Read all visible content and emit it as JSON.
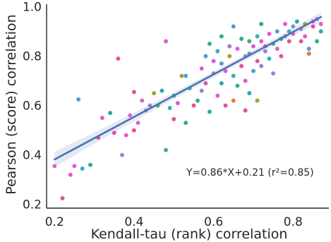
{
  "chart_data": {
    "type": "scatter",
    "title": "",
    "xlabel": "Kendall-tau (rank) correlation",
    "ylabel": "Pearson (score) correlation",
    "xlim": [
      0.18,
      0.89
    ],
    "ylim": [
      0.185,
      1.01
    ],
    "xticks": [
      "0.2",
      "0.4",
      "0.6",
      "0.8"
    ],
    "yticks": [
      "0.2",
      "0.4",
      "0.6",
      "0.8",
      "1.0"
    ],
    "grid": false,
    "legend": "none",
    "regression": {
      "slope": 0.86,
      "intercept": 0.21,
      "x_range": [
        0.2,
        0.87
      ],
      "color": "#4c72b0",
      "band_color": "#dbe3f0"
    },
    "annotation": "Y=0.86*X+0.21 (r²=0.85)",
    "palette": [
      "#e35ad3",
      "#36aec0",
      "#4c9fd6",
      "#9b7fe0",
      "#3bb275",
      "#ae9d31",
      "#e0529c",
      "#7f8ee0",
      "#e07b39",
      "#2fa89f"
    ],
    "points": [
      [
        0.2,
        0.355,
        0
      ],
      [
        0.22,
        0.225,
        6
      ],
      [
        0.24,
        0.32,
        0
      ],
      [
        0.25,
        0.355,
        0
      ],
      [
        0.26,
        0.625,
        2
      ],
      [
        0.27,
        0.345,
        1
      ],
      [
        0.29,
        0.36,
        9
      ],
      [
        0.31,
        0.47,
        6
      ],
      [
        0.32,
        0.55,
        0
      ],
      [
        0.34,
        0.57,
        9
      ],
      [
        0.35,
        0.49,
        6
      ],
      [
        0.36,
        0.79,
        6
      ],
      [
        0.37,
        0.4,
        7
      ],
      [
        0.38,
        0.48,
        0
      ],
      [
        0.39,
        0.56,
        0
      ],
      [
        0.4,
        0.5,
        6
      ],
      [
        0.4,
        0.655,
        6
      ],
      [
        0.41,
        0.53,
        0
      ],
      [
        0.42,
        0.62,
        0
      ],
      [
        0.43,
        0.58,
        7
      ],
      [
        0.44,
        0.6,
        3
      ],
      [
        0.45,
        0.65,
        5
      ],
      [
        0.46,
        0.6,
        4
      ],
      [
        0.47,
        0.66,
        9
      ],
      [
        0.48,
        0.86,
        0
      ],
      [
        0.48,
        0.42,
        4
      ],
      [
        0.49,
        0.59,
        1
      ],
      [
        0.5,
        0.64,
        9
      ],
      [
        0.5,
        0.545,
        6
      ],
      [
        0.51,
        0.61,
        0
      ],
      [
        0.52,
        0.72,
        5
      ],
      [
        0.53,
        0.72,
        2
      ],
      [
        0.53,
        0.53,
        9
      ],
      [
        0.54,
        0.67,
        1
      ],
      [
        0.55,
        0.6,
        6
      ],
      [
        0.56,
        0.62,
        4
      ],
      [
        0.57,
        0.75,
        0
      ],
      [
        0.57,
        0.66,
        3
      ],
      [
        0.58,
        0.8,
        2
      ],
      [
        0.58,
        0.69,
        6
      ],
      [
        0.59,
        0.85,
        4
      ],
      [
        0.59,
        0.575,
        9
      ],
      [
        0.6,
        0.78,
        0
      ],
      [
        0.6,
        0.73,
        7
      ],
      [
        0.61,
        0.82,
        1
      ],
      [
        0.61,
        0.64,
        0
      ],
      [
        0.62,
        0.77,
        2
      ],
      [
        0.62,
        0.88,
        4
      ],
      [
        0.62,
        0.69,
        9
      ],
      [
        0.63,
        0.74,
        0
      ],
      [
        0.63,
        0.6,
        6
      ],
      [
        0.64,
        0.84,
        3
      ],
      [
        0.64,
        0.8,
        5
      ],
      [
        0.65,
        0.92,
        2
      ],
      [
        0.65,
        0.72,
        1
      ],
      [
        0.65,
        0.62,
        8
      ],
      [
        0.66,
        0.68,
        4
      ],
      [
        0.66,
        0.83,
        0
      ],
      [
        0.67,
        0.76,
        6
      ],
      [
        0.67,
        0.87,
        9
      ],
      [
        0.68,
        0.8,
        3
      ],
      [
        0.68,
        0.7,
        0
      ],
      [
        0.68,
        0.58,
        6
      ],
      [
        0.69,
        0.81,
        1
      ],
      [
        0.69,
        0.86,
        4
      ],
      [
        0.69,
        0.65,
        9
      ],
      [
        0.7,
        0.84,
        0
      ],
      [
        0.7,
        0.74,
        2
      ],
      [
        0.71,
        0.88,
        1
      ],
      [
        0.71,
        0.78,
        6
      ],
      [
        0.71,
        0.62,
        5
      ],
      [
        0.72,
        0.86,
        0
      ],
      [
        0.72,
        0.76,
        7
      ],
      [
        0.72,
        0.93,
        9
      ],
      [
        0.73,
        0.82,
        3
      ],
      [
        0.73,
        0.84,
        6
      ],
      [
        0.74,
        0.89,
        0
      ],
      [
        0.74,
        0.79,
        1
      ],
      [
        0.75,
        0.85,
        4
      ],
      [
        0.75,
        0.73,
        7
      ],
      [
        0.76,
        0.9,
        2
      ],
      [
        0.76,
        0.83,
        0
      ],
      [
        0.77,
        0.87,
        9
      ],
      [
        0.77,
        0.8,
        6
      ],
      [
        0.78,
        0.93,
        0
      ],
      [
        0.78,
        0.88,
        3
      ],
      [
        0.79,
        0.9,
        1
      ],
      [
        0.79,
        0.86,
        6
      ],
      [
        0.8,
        0.92,
        7
      ],
      [
        0.8,
        0.89,
        0
      ],
      [
        0.81,
        0.94,
        9
      ],
      [
        0.82,
        0.91,
        3
      ],
      [
        0.82,
        0.86,
        6
      ],
      [
        0.83,
        0.93,
        5
      ],
      [
        0.83,
        0.88,
        0
      ],
      [
        0.84,
        0.81,
        8
      ],
      [
        0.84,
        0.83,
        2
      ],
      [
        0.85,
        0.94,
        0
      ],
      [
        0.85,
        0.92,
        6
      ],
      [
        0.86,
        0.95,
        3
      ],
      [
        0.86,
        0.86,
        4
      ],
      [
        0.87,
        0.93,
        0
      ],
      [
        0.87,
        0.9,
        9
      ]
    ]
  }
}
